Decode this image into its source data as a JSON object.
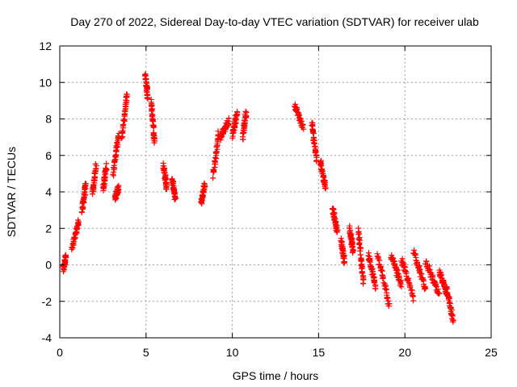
{
  "chart_data": {
    "type": "scatter",
    "title": "Day 270 of 2022, Sidereal Day-to-day VTEC variation (SDTVAR) for receiver ulab",
    "xlabel": "GPS time / hours",
    "ylabel": "SDTVAR / TECUs",
    "xlim": [
      0,
      25
    ],
    "ylim": [
      -4,
      12
    ],
    "xticks": [
      0,
      5,
      10,
      15,
      20,
      25
    ],
    "yticks": [
      -4,
      -2,
      0,
      2,
      4,
      6,
      8,
      10,
      12
    ],
    "grid": true,
    "marker": "+",
    "color": "#ff0000",
    "series": [
      {
        "name": "SDTVAR",
        "segments": [
          {
            "x0": 0.2,
            "x1": 0.35,
            "y0": -0.3,
            "y1": 0.5
          },
          {
            "x0": 0.7,
            "x1": 1.1,
            "y0": 0.8,
            "y1": 2.4
          },
          {
            "x0": 1.3,
            "x1": 1.5,
            "y0": 3.0,
            "y1": 4.4
          },
          {
            "x0": 1.9,
            "x1": 2.1,
            "y0": 3.9,
            "y1": 5.4
          },
          {
            "x0": 2.5,
            "x1": 2.7,
            "y0": 4.1,
            "y1": 5.4
          },
          {
            "x0": 3.1,
            "x1": 3.4,
            "y0": 5.0,
            "y1": 7.2
          },
          {
            "x0": 3.2,
            "x1": 3.4,
            "y0": 3.7,
            "y1": 4.2
          },
          {
            "x0": 3.6,
            "x1": 3.9,
            "y0": 7.0,
            "y1": 9.4
          },
          {
            "x0": 4.95,
            "x1": 5.1,
            "y0": 10.4,
            "y1": 9.2
          },
          {
            "x0": 5.3,
            "x1": 5.5,
            "y0": 9.0,
            "y1": 6.7
          },
          {
            "x0": 6.0,
            "x1": 6.2,
            "y0": 5.5,
            "y1": 4.2
          },
          {
            "x0": 6.5,
            "x1": 6.7,
            "y0": 4.7,
            "y1": 3.6
          },
          {
            "x0": 8.2,
            "x1": 8.4,
            "y0": 3.4,
            "y1": 4.4
          },
          {
            "x0": 8.9,
            "x1": 9.2,
            "y0": 4.9,
            "y1": 7.2
          },
          {
            "x0": 9.3,
            "x1": 9.8,
            "y0": 7.0,
            "y1": 7.9
          },
          {
            "x0": 10.0,
            "x1": 10.3,
            "y0": 7.1,
            "y1": 8.4
          },
          {
            "x0": 10.6,
            "x1": 10.8,
            "y0": 7.0,
            "y1": 8.4
          },
          {
            "x0": 13.6,
            "x1": 14.1,
            "y0": 8.8,
            "y1": 7.5
          },
          {
            "x0": 14.6,
            "x1": 14.9,
            "y0": 7.8,
            "y1": 5.7
          },
          {
            "x0": 15.1,
            "x1": 15.4,
            "y0": 5.7,
            "y1": 4.2
          },
          {
            "x0": 15.8,
            "x1": 16.1,
            "y0": 3.1,
            "y1": 1.8
          },
          {
            "x0": 16.3,
            "x1": 16.5,
            "y0": 1.3,
            "y1": 0.2
          },
          {
            "x0": 16.8,
            "x1": 17.0,
            "y0": 2.0,
            "y1": 0.7
          },
          {
            "x0": 17.3,
            "x1": 17.6,
            "y0": 1.9,
            "y1": -1.0
          },
          {
            "x0": 17.9,
            "x1": 18.3,
            "y0": 0.5,
            "y1": -1.2
          },
          {
            "x0": 18.4,
            "x1": 19.1,
            "y0": 0.7,
            "y1": -2.3
          },
          {
            "x0": 19.2,
            "x1": 19.8,
            "y0": 0.5,
            "y1": -1.1
          },
          {
            "x0": 19.8,
            "x1": 20.5,
            "y0": 0.3,
            "y1": -1.8
          },
          {
            "x0": 20.5,
            "x1": 21.2,
            "y0": 0.8,
            "y1": -1.4
          },
          {
            "x0": 21.2,
            "x1": 22.0,
            "y0": 0.2,
            "y1": -1.7
          },
          {
            "x0": 22.0,
            "x1": 22.4,
            "y0": -0.4,
            "y1": -1.5
          },
          {
            "x0": 22.4,
            "x1": 22.8,
            "y0": -1.2,
            "y1": -3.1
          }
        ]
      }
    ]
  }
}
